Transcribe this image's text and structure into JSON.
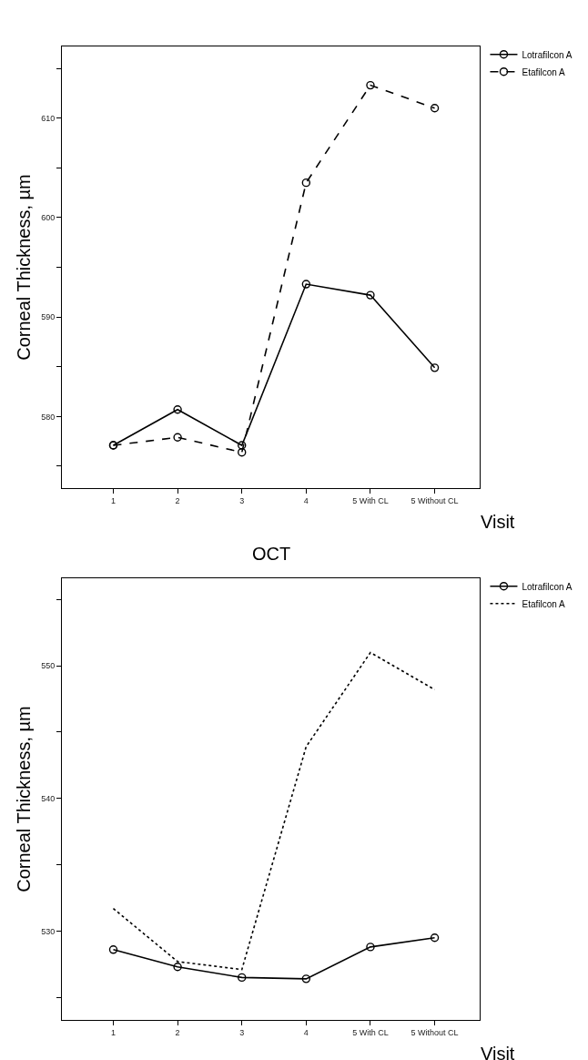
{
  "chart_data": [
    {
      "type": "line",
      "xlabel": "Visit",
      "ylabel": "Corneal Thickness, µm",
      "categories": [
        "1",
        "2",
        "3",
        "4",
        "5 With CL",
        "5 Without CL"
      ],
      "ylim": [
        572.8,
        617.2
      ],
      "yticks": [
        {
          "value": 575,
          "label": null
        },
        580,
        {
          "value": 585,
          "label": null
        },
        590,
        {
          "value": 595,
          "label": null
        },
        600,
        {
          "value": 605,
          "label": null
        },
        610,
        {
          "value": 615,
          "label": null
        }
      ],
      "legend": "top right",
      "series": [
        {
          "name": "Lotrafilcon A",
          "color": "#000000",
          "marker": "circle",
          "line_style": "solid",
          "values": [
            577.1,
            580.7,
            577.1,
            593.3,
            592.2,
            584.9
          ]
        },
        {
          "name": "Etafilcon A",
          "color": "#000000",
          "marker": "circle",
          "line_style": "dashed",
          "values": [
            577.1,
            577.9,
            576.4,
            603.5,
            613.3,
            611.0
          ]
        }
      ]
    },
    {
      "type": "line",
      "title": "OCT",
      "xlabel": "Visit",
      "ylabel": "Corneal Thickness, µm",
      "categories": [
        "1",
        "2",
        "3",
        "4",
        "5 With CL",
        "5 Without CL"
      ],
      "ylim": [
        523.3,
        556.6
      ],
      "yticks": [
        {
          "value": 525,
          "label": null
        },
        530,
        {
          "value": 535,
          "label": null
        },
        540,
        {
          "value": 545,
          "label": null
        },
        550,
        {
          "value": 555,
          "label": null
        }
      ],
      "legend": "top right",
      "series": [
        {
          "name": "Lotrafilcon A",
          "color": "#000000",
          "marker": "circle",
          "line_style": "solid",
          "values": [
            528.6,
            527.3,
            526.5,
            526.4,
            528.8,
            529.5
          ]
        },
        {
          "name": "Etafilcon A",
          "color": "#000000",
          "marker": "none",
          "line_style": "dotted",
          "values": [
            531.7,
            527.7,
            527.1,
            543.9,
            551.0,
            548.2
          ]
        }
      ]
    }
  ]
}
